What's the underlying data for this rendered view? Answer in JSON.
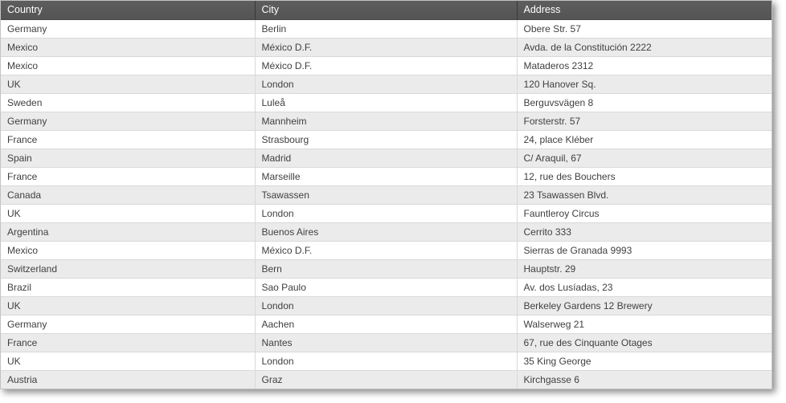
{
  "grid": {
    "columns": [
      {
        "label": "Country"
      },
      {
        "label": "City"
      },
      {
        "label": "Address"
      }
    ],
    "rows": [
      [
        "Germany",
        "Berlin",
        "Obere Str. 57"
      ],
      [
        "Mexico",
        "México D.F.",
        "Avda. de la Constitución 2222"
      ],
      [
        "Mexico",
        "México D.F.",
        "Mataderos 2312"
      ],
      [
        "UK",
        "London",
        "120 Hanover Sq."
      ],
      [
        "Sweden",
        "Luleå",
        "Berguvsvägen 8"
      ],
      [
        "Germany",
        "Mannheim",
        "Forsterstr. 57"
      ],
      [
        "France",
        "Strasbourg",
        "24, place Kléber"
      ],
      [
        "Spain",
        "Madrid",
        "C/ Araquil, 67"
      ],
      [
        "France",
        "Marseille",
        "12, rue des Bouchers"
      ],
      [
        "Canada",
        "Tsawassen",
        "23 Tsawassen Blvd."
      ],
      [
        "UK",
        "London",
        "Fauntleroy Circus"
      ],
      [
        "Argentina",
        "Buenos Aires",
        "Cerrito 333"
      ],
      [
        "Mexico",
        "México D.F.",
        "Sierras de Granada 9993"
      ],
      [
        "Switzerland",
        "Bern",
        "Hauptstr. 29"
      ],
      [
        "Brazil",
        "Sao Paulo",
        "Av. dos Lusíadas, 23"
      ],
      [
        "UK",
        "London",
        "Berkeley Gardens 12 Brewery"
      ],
      [
        "Germany",
        "Aachen",
        "Walserweg 21"
      ],
      [
        "France",
        "Nantes",
        "67, rue des Cinquante Otages"
      ],
      [
        "UK",
        "London",
        "35 King George"
      ],
      [
        "Austria",
        "Graz",
        "Kirchgasse 6"
      ]
    ]
  },
  "theme": {
    "header_bg_top": "#5e5e5e",
    "header_bg_bottom": "#545454",
    "header_text": "#ffffff",
    "row_bg": "#ffffff",
    "row_alt_bg": "#ebebeb",
    "grid_line": "#d9d9d9",
    "border_color": "#c3c3c3",
    "cell_text": "#404040"
  }
}
